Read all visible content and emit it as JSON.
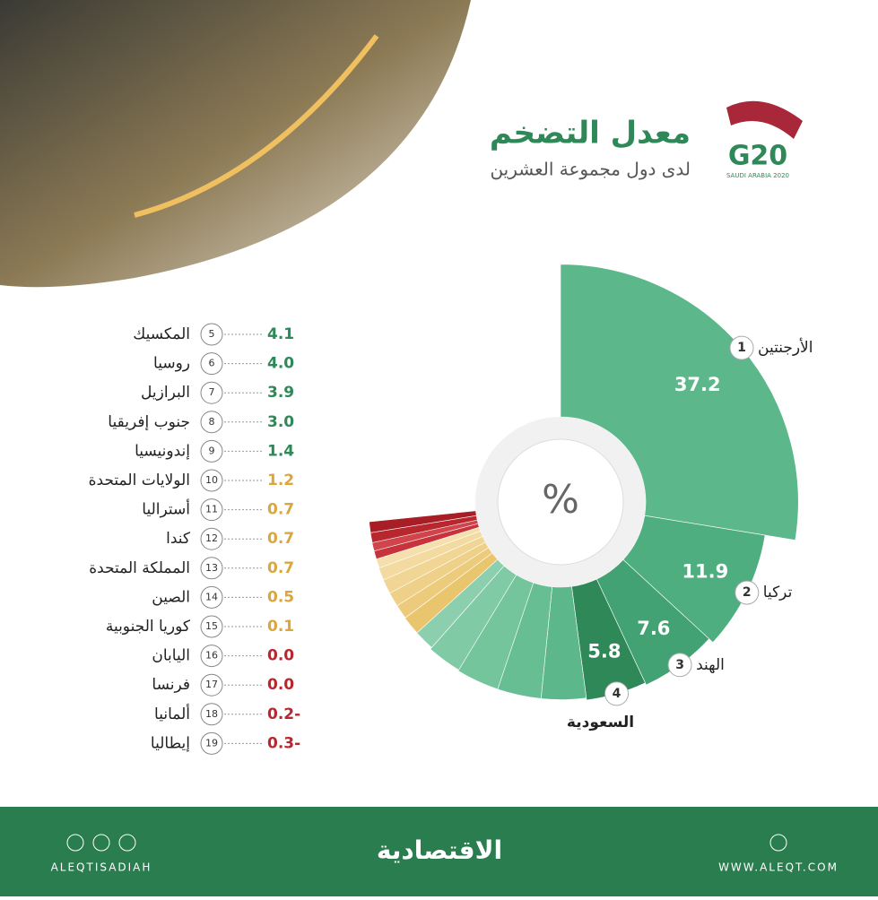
{
  "header": {
    "title": "معدل التضخم",
    "subtitle": "لدى دول مجموعة العشرين",
    "logo": "G20",
    "logo_caption": "SAUDI ARABIA 2020"
  },
  "chart_data": {
    "type": "rose",
    "center_label": "%",
    "ranks": [
      1,
      2,
      3,
      4,
      5,
      6,
      7,
      8,
      9,
      10,
      11,
      12,
      13,
      14,
      15,
      16,
      17,
      18,
      19
    ],
    "categories": [
      "الأرجنتين",
      "تركيا",
      "الهند",
      "السعودية",
      "المكسيك",
      "روسيا",
      "البرازيل",
      "جنوب إفريقيا",
      "إندونيسيا",
      "الولايات المتحدة",
      "أستراليا",
      "كندا",
      "المملكة المتحدة",
      "الصين",
      "كوريا الجنوبية",
      "اليابان",
      "فرنسا",
      "ألمانيا",
      "إيطاليا"
    ],
    "values": [
      37.2,
      11.9,
      7.6,
      5.8,
      4.1,
      4.0,
      3.9,
      3.0,
      1.4,
      1.2,
      0.7,
      0.7,
      0.7,
      0.5,
      0.1,
      0.0,
      0.0,
      -0.2,
      -0.3
    ],
    "value_labels": [
      "37.2",
      "11.9",
      "7.6",
      "5.8",
      "4.1",
      "4.0",
      "3.9",
      "3.0",
      "1.4",
      "1.2",
      "0.7",
      "0.7",
      "0.7",
      "0.5",
      "0.1",
      "0.0",
      "0.0",
      "0.2-",
      "0.3-"
    ],
    "colors": [
      "#5cb88a",
      "#4fae7f",
      "#43a273",
      "#2e8858",
      "#5cb88a",
      "#68be93",
      "#74c49c",
      "#80caa5",
      "#8ccfae",
      "#e9c56e",
      "#edcb7c",
      "#efd088",
      "#f1d594",
      "#f3daa0",
      "#f5dfac",
      "#c8323a",
      "#d0454c",
      "#b8262e",
      "#a81e26"
    ],
    "text_colors": [
      "#2e8858",
      "#2e8858",
      "#2e8858",
      "#2e8858",
      "#2e8858",
      "#2e8858",
      "#2e8858",
      "#2e8858",
      "#2e8858",
      "#d9a640",
      "#d9a640",
      "#d9a640",
      "#d9a640",
      "#d9a640",
      "#d9a640",
      "#b8262e",
      "#b8262e",
      "#b8262e",
      "#b8262e"
    ]
  },
  "footer": {
    "handle": "ALEQTISADIAH",
    "brand": "الاقتصادية",
    "site": "WWW.ALEQT.COM"
  }
}
